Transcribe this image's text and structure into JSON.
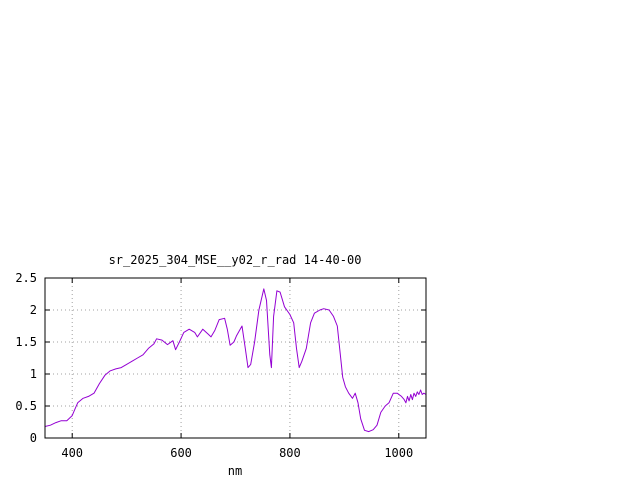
{
  "chart_data": {
    "type": "line",
    "title": "sr_2025_304_MSE__y02_r_rad 14-40-00",
    "xlabel": "nm",
    "ylabel": "",
    "xlim": [
      350,
      1050
    ],
    "ylim": [
      0,
      2.5
    ],
    "x_ticks": [
      400,
      600,
      800,
      1000
    ],
    "x_tick_labels": [
      "400",
      "600",
      "800",
      "1000"
    ],
    "y_ticks": [
      0,
      0.5,
      1,
      1.5,
      2,
      2.5
    ],
    "y_tick_labels": [
      "0",
      "0.5",
      "1",
      "1.5",
      "2",
      "2.5"
    ],
    "grid": true,
    "legend": "none",
    "series": [
      {
        "color": "#9400d3",
        "points": [
          [
            350,
            0.18
          ],
          [
            360,
            0.2
          ],
          [
            370,
            0.24
          ],
          [
            380,
            0.27
          ],
          [
            390,
            0.27
          ],
          [
            400,
            0.35
          ],
          [
            405,
            0.45
          ],
          [
            410,
            0.55
          ],
          [
            420,
            0.62
          ],
          [
            430,
            0.65
          ],
          [
            440,
            0.7
          ],
          [
            450,
            0.85
          ],
          [
            460,
            0.98
          ],
          [
            470,
            1.05
          ],
          [
            480,
            1.08
          ],
          [
            490,
            1.1
          ],
          [
            500,
            1.15
          ],
          [
            510,
            1.2
          ],
          [
            520,
            1.25
          ],
          [
            530,
            1.3
          ],
          [
            540,
            1.4
          ],
          [
            550,
            1.47
          ],
          [
            555,
            1.55
          ],
          [
            565,
            1.53
          ],
          [
            575,
            1.46
          ],
          [
            585,
            1.52
          ],
          [
            590,
            1.38
          ],
          [
            597,
            1.5
          ],
          [
            605,
            1.65
          ],
          [
            615,
            1.7
          ],
          [
            625,
            1.65
          ],
          [
            630,
            1.58
          ],
          [
            640,
            1.7
          ],
          [
            650,
            1.62
          ],
          [
            655,
            1.58
          ],
          [
            662,
            1.68
          ],
          [
            670,
            1.85
          ],
          [
            680,
            1.87
          ],
          [
            685,
            1.7
          ],
          [
            690,
            1.45
          ],
          [
            697,
            1.5
          ],
          [
            702,
            1.6
          ],
          [
            712,
            1.75
          ],
          [
            718,
            1.4
          ],
          [
            723,
            1.1
          ],
          [
            728,
            1.15
          ],
          [
            735,
            1.5
          ],
          [
            743,
            2.0
          ],
          [
            752,
            2.33
          ],
          [
            757,
            2.15
          ],
          [
            763,
            1.3
          ],
          [
            766,
            1.1
          ],
          [
            770,
            1.9
          ],
          [
            776,
            2.3
          ],
          [
            782,
            2.28
          ],
          [
            790,
            2.05
          ],
          [
            800,
            1.93
          ],
          [
            807,
            1.8
          ],
          [
            812,
            1.4
          ],
          [
            817,
            1.1
          ],
          [
            822,
            1.2
          ],
          [
            830,
            1.4
          ],
          [
            838,
            1.8
          ],
          [
            845,
            1.95
          ],
          [
            855,
            2.0
          ],
          [
            862,
            2.02
          ],
          [
            872,
            2.0
          ],
          [
            880,
            1.9
          ],
          [
            887,
            1.75
          ],
          [
            892,
            1.35
          ],
          [
            897,
            0.95
          ],
          [
            902,
            0.8
          ],
          [
            908,
            0.7
          ],
          [
            915,
            0.62
          ],
          [
            920,
            0.7
          ],
          [
            925,
            0.55
          ],
          [
            930,
            0.3
          ],
          [
            937,
            0.12
          ],
          [
            945,
            0.1
          ],
          [
            953,
            0.13
          ],
          [
            960,
            0.2
          ],
          [
            967,
            0.4
          ],
          [
            975,
            0.5
          ],
          [
            982,
            0.55
          ],
          [
            990,
            0.7
          ],
          [
            997,
            0.7
          ],
          [
            1005,
            0.65
          ],
          [
            1010,
            0.6
          ],
          [
            1013,
            0.55
          ],
          [
            1016,
            0.65
          ],
          [
            1019,
            0.58
          ],
          [
            1022,
            0.68
          ],
          [
            1025,
            0.6
          ],
          [
            1028,
            0.7
          ],
          [
            1031,
            0.65
          ],
          [
            1034,
            0.72
          ],
          [
            1037,
            0.68
          ],
          [
            1040,
            0.75
          ],
          [
            1043,
            0.68
          ],
          [
            1046,
            0.7
          ],
          [
            1050,
            0.68
          ]
        ]
      }
    ]
  }
}
